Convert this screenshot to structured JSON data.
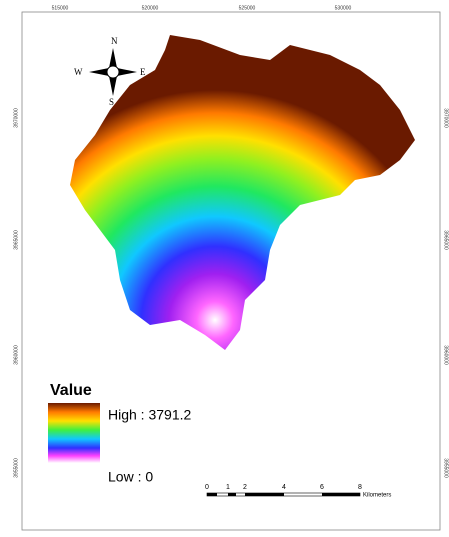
{
  "map": {
    "top_coords": [
      "515000",
      "520000",
      "525000",
      "530000"
    ],
    "left_coords": [
      "3970000",
      "3965000",
      "3960000",
      "3955000"
    ],
    "right_coords": [
      "3970000",
      "3965000",
      "3960000",
      "3955000"
    ],
    "compass": {
      "north": "N",
      "south": "S",
      "east": "E",
      "west": "W"
    },
    "legend": {
      "title": "Value",
      "high": "High : 3791.2",
      "low": "Low : 0"
    },
    "scale_bar": {
      "labels": [
        "0",
        "1",
        "2",
        "4",
        "6",
        "8"
      ],
      "unit": "Kilometers"
    }
  }
}
